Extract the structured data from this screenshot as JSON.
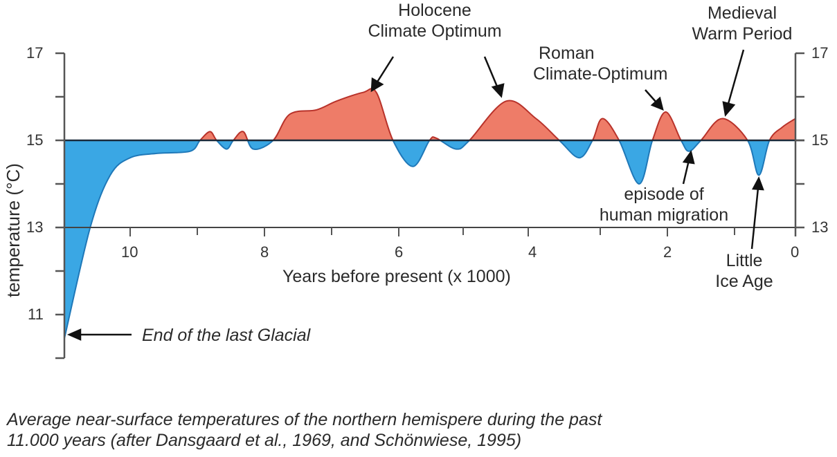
{
  "colors": {
    "warm_fill": "#ee7c68",
    "warm_stroke": "#b8322a",
    "cold_fill": "#3aa7e4",
    "cold_stroke": "#1f78b8",
    "baseline": "#1b2a3a",
    "axis": "#555555"
  },
  "chart_data": {
    "type": "area",
    "title": "",
    "xlabel": "Years before present (x 1000)",
    "ylabel": "temperature (°C)",
    "x_reversed": true,
    "xlim": [
      11,
      0
    ],
    "ylim": [
      10,
      17
    ],
    "baseline": 15,
    "x_ticks": [
      10,
      9,
      8,
      7,
      6,
      5,
      4,
      3,
      2,
      1,
      0
    ],
    "x_tick_labels": [
      "10",
      "8",
      "6",
      "4",
      "2",
      "0"
    ],
    "y_ticks_left": [
      17,
      16,
      15,
      14,
      13,
      12,
      11,
      10
    ],
    "y_tick_labels_left": [
      "17",
      "15",
      "13",
      "11"
    ],
    "y_tick_labels_right": [
      "17",
      "15",
      "13"
    ],
    "grid": false,
    "fill_above_baseline_color": "#ee7c68",
    "fill_below_baseline_color": "#3aa7e4",
    "series": [
      {
        "name": "Average near-surface temperature (northern hemisphere)",
        "x": [
          11.0,
          10.6,
          10.3,
          10.0,
          9.6,
          9.1,
          8.95,
          8.8,
          8.7,
          8.55,
          8.45,
          8.3,
          8.15,
          7.85,
          7.6,
          7.2,
          6.9,
          6.5,
          6.3,
          6.05,
          5.75,
          5.5,
          5.4,
          5.1,
          4.9,
          4.35,
          3.9,
          3.55,
          3.25,
          3.05,
          2.9,
          2.65,
          2.35,
          2.15,
          1.95,
          1.72,
          1.6,
          1.42,
          1.1,
          0.72,
          0.55,
          0.39,
          0.2,
          0.0
        ],
        "y": [
          10.45,
          13.0,
          14.2,
          14.6,
          14.7,
          14.75,
          15.0,
          15.2,
          15.0,
          14.8,
          15.0,
          15.2,
          14.8,
          15.0,
          15.6,
          15.7,
          15.9,
          16.1,
          16.1,
          15.0,
          14.4,
          15.0,
          15.05,
          14.8,
          15.0,
          15.9,
          15.5,
          15.0,
          14.6,
          15.0,
          15.5,
          15.0,
          14.0,
          15.0,
          15.65,
          15.0,
          14.75,
          15.0,
          15.5,
          15.0,
          14.2,
          15.0,
          15.3,
          15.5
        ]
      }
    ],
    "annotations": [
      {
        "text": "Holocene Climate Optimum",
        "points_to_x": [
          6.4,
          4.4
        ]
      },
      {
        "text": "Roman Climate-Optimum",
        "points_to_x": [
          2.0
        ]
      },
      {
        "text": "Medieval Warm Period",
        "points_to_x": [
          1.1
        ]
      },
      {
        "text": "episode of human migration",
        "points_to_x": [
          1.6
        ]
      },
      {
        "text": "Little Ice Age",
        "points_to_x": [
          0.55
        ]
      },
      {
        "text": "End of the last Glacial",
        "points_to_x": [
          11.0
        ]
      }
    ]
  },
  "labels": {
    "holocene_line1": "Holocene",
    "holocene_line2": "Climate Optimum",
    "roman_line1": "Roman",
    "roman_line2": "Climate-Optimum",
    "medieval_line1": "Medieval",
    "medieval_line2": "Warm Period",
    "migration_line1": "episode of",
    "migration_line2": "human migration",
    "lia_line1": "Little",
    "lia_line2": "Ice Age",
    "glacial": "End of the last Glacial"
  },
  "axes": {
    "ylabel": "temperature (°C)",
    "xlabel": "Years before present (x 1000)",
    "left_ticks": [
      "17",
      "15",
      "13",
      "11"
    ],
    "right_ticks": [
      "17",
      "15",
      "13"
    ],
    "x_ticks": [
      "10",
      "8",
      "6",
      "4",
      "2",
      "0"
    ]
  },
  "caption": {
    "line1": "Average near-surface temperatures of the northern hemispere during the past",
    "line2": "11.000 years (after Dansgaard et al., 1969, and Schönwiese, 1995)"
  }
}
